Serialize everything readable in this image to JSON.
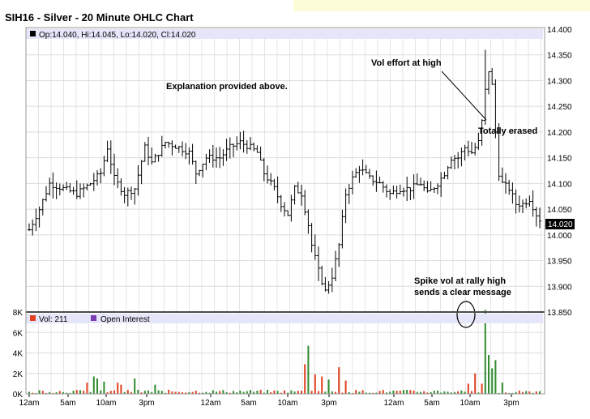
{
  "title": "SIH16 - Silver - 20 Minute OHLC Chart",
  "ohlc_readout": "Op:14.040, Hi:14.045, Lo:14.020, Cl:14.020",
  "last_price_label": "14.020",
  "annotations": [
    {
      "id": "explanation",
      "text": "Explanation provided above."
    },
    {
      "id": "vol-effort",
      "text": "Vol effort at high"
    },
    {
      "id": "totally-erased",
      "text": "Totally erased"
    },
    {
      "id": "spike-vol-1",
      "text": "Spike vol at rally high"
    },
    {
      "id": "spike-vol-2",
      "text": "sends a clear message"
    }
  ],
  "volume_legend": {
    "vol_label": "Vol: 211",
    "oi_label": "Open Interest"
  },
  "colors": {
    "up_bar": "#2e8b2e",
    "down_bar": "#e04020",
    "ohlc": "#000000",
    "legend_band": "#e6e6fa",
    "oi_swatch": "#7b3fb5"
  },
  "chart_data": [
    {
      "type": "line",
      "title": "SIH16 - Silver - 20 Minute OHLC Chart",
      "y_ticks": [
        "14.400",
        "14.350",
        "14.300",
        "14.250",
        "14.200",
        "14.150",
        "14.100",
        "14.050",
        "14.000",
        "13.950",
        "13.900",
        "13.850"
      ],
      "ylim": [
        13.85,
        14.4
      ],
      "x_ticks": [
        "12am",
        "5am",
        "10am",
        "3pm",
        "12am",
        "5am",
        "10am",
        "3pm",
        "12am",
        "5am",
        "10am",
        "3pm"
      ],
      "grid": true,
      "close_path": [
        [
          0,
          14.01
        ],
        [
          3,
          14.05
        ],
        [
          6,
          14.1
        ],
        [
          10,
          14.09
        ],
        [
          14,
          14.08
        ],
        [
          18,
          14.1
        ],
        [
          21,
          14.12
        ],
        [
          23,
          14.17
        ],
        [
          25,
          14.11
        ],
        [
          28,
          14.08
        ],
        [
          31,
          14.09
        ],
        [
          34,
          14.17
        ],
        [
          36,
          14.14
        ],
        [
          40,
          14.18
        ],
        [
          44,
          14.17
        ],
        [
          47,
          14.16
        ],
        [
          49,
          14.12
        ],
        [
          52,
          14.15
        ],
        [
          56,
          14.15
        ],
        [
          59,
          14.17
        ],
        [
          62,
          14.18
        ],
        [
          65,
          14.17
        ],
        [
          67,
          14.16
        ],
        [
          69,
          14.12
        ],
        [
          72,
          14.09
        ],
        [
          74,
          14.06
        ],
        [
          76,
          14.04
        ],
        [
          78,
          14.09
        ],
        [
          80,
          14.08
        ],
        [
          82,
          14.02
        ],
        [
          83,
          13.98
        ],
        [
          85,
          13.93
        ],
        [
          87,
          13.89
        ],
        [
          89,
          13.92
        ],
        [
          91,
          13.98
        ],
        [
          93,
          14.08
        ],
        [
          95,
          14.11
        ],
        [
          97,
          14.13
        ],
        [
          100,
          14.11
        ],
        [
          103,
          14.1
        ],
        [
          106,
          14.08
        ],
        [
          109,
          14.09
        ],
        [
          112,
          14.09
        ],
        [
          115,
          14.1
        ],
        [
          117,
          14.08
        ],
        [
          120,
          14.1
        ],
        [
          122,
          14.12
        ],
        [
          124,
          14.15
        ],
        [
          126,
          14.15
        ],
        [
          128,
          14.17
        ],
        [
          130,
          14.16
        ],
        [
          132,
          14.18
        ],
        [
          133,
          14.22
        ],
        [
          134,
          14.28
        ],
        [
          135,
          14.32
        ],
        [
          136,
          14.29
        ],
        [
          137,
          14.2
        ],
        [
          138,
          14.12
        ],
        [
          139,
          14.1
        ],
        [
          141,
          14.09
        ],
        [
          143,
          14.06
        ],
        [
          145,
          14.06
        ],
        [
          147,
          14.07
        ],
        [
          149,
          14.04
        ],
        [
          150,
          14.03
        ]
      ]
    },
    {
      "type": "bar",
      "title": "Vol: 211",
      "y_ticks": [
        "8K",
        "6K",
        "4K",
        "2K",
        "0K"
      ],
      "ylim": [
        0,
        8000
      ],
      "x_ticks": [
        "12am",
        "5am",
        "10am",
        "3pm",
        "12am",
        "5am",
        "10am",
        "3pm",
        "12am",
        "5am",
        "10am",
        "3pm"
      ],
      "series": [
        {
          "name": "Vol"
        },
        {
          "name": "Open Interest"
        }
      ],
      "spikes": [
        {
          "bar": 4,
          "value": 300
        },
        {
          "bar": 17,
          "value": 1100
        },
        {
          "bar": 19,
          "value": 1700
        },
        {
          "bar": 20,
          "value": 1500
        },
        {
          "bar": 22,
          "value": 1200
        },
        {
          "bar": 26,
          "value": 1100
        },
        {
          "bar": 27,
          "value": 900
        },
        {
          "bar": 31,
          "value": 1500
        },
        {
          "bar": 37,
          "value": 900
        },
        {
          "bar": 81,
          "value": 2900
        },
        {
          "bar": 82,
          "value": 4700
        },
        {
          "bar": 84,
          "value": 1900
        },
        {
          "bar": 86,
          "value": 1700
        },
        {
          "bar": 88,
          "value": 1400
        },
        {
          "bar": 91,
          "value": 2600
        },
        {
          "bar": 93,
          "value": 1300
        },
        {
          "bar": 129,
          "value": 1000
        },
        {
          "bar": 131,
          "value": 2000
        },
        {
          "bar": 133,
          "value": 1000
        },
        {
          "bar": 134,
          "value": 8200
        },
        {
          "bar": 135,
          "value": 3800
        },
        {
          "bar": 136,
          "value": 2500
        },
        {
          "bar": 137,
          "value": 3300
        },
        {
          "bar": 139,
          "value": 1100
        }
      ]
    }
  ]
}
